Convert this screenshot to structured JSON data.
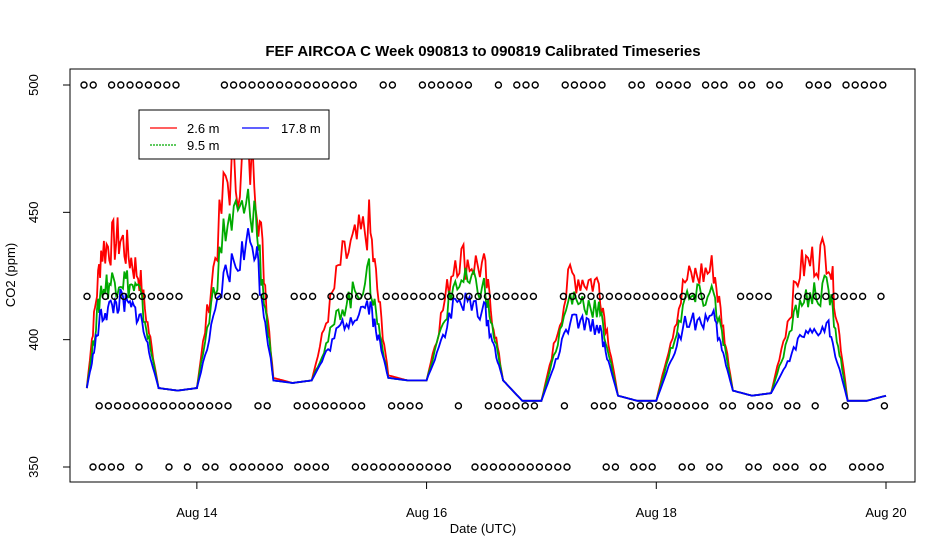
{
  "chart_data": {
    "type": "line",
    "title": "FEF AIRCOA C  Week 090813 to 090819  Calibrated Timeseries",
    "xlabel": "Date (UTC)",
    "ylabel": "CO2 (ppm)",
    "xlim": [
      "2009-08-13",
      "2009-08-20"
    ],
    "ylim": [
      345,
      505
    ],
    "xticks": [
      "Aug 14",
      "Aug 16",
      "Aug 18",
      "Aug 20"
    ],
    "yticks": [
      350,
      400,
      450,
      500
    ],
    "grid": false,
    "legend_position": "top-left",
    "series": [
      {
        "name": "2.6 m",
        "color": "#ff0000",
        "x": [
          "08-13 01h",
          "08-13 04h",
          "08-13 08h",
          "08-13 12h",
          "08-13 16h",
          "08-13 20h",
          "08-14 00h",
          "08-14 06h",
          "08-14 12h",
          "08-14 16h",
          "08-14 20h",
          "08-15 00h",
          "08-15 06h",
          "08-15 12h",
          "08-15 16h",
          "08-15 20h",
          "08-16 00h",
          "08-16 06h",
          "08-16 12h",
          "08-16 16h",
          "08-16 20h",
          "08-17 00h",
          "08-17 06h",
          "08-17 12h",
          "08-17 16h",
          "08-17 20h",
          "08-18 00h",
          "08-18 06h",
          "08-18 12h",
          "08-18 16h",
          "08-18 20h",
          "08-19 00h",
          "08-19 06h",
          "08-19 12h",
          "08-19 16h",
          "08-19 20h",
          "08-20 00h"
        ],
        "y": [
          381,
          435,
          440,
          425,
          381,
          380,
          381,
          462,
          470,
          385,
          383,
          384,
          430,
          445,
          386,
          384,
          384,
          433,
          428,
          384,
          376,
          376,
          425,
          422,
          378,
          376,
          376,
          423,
          428,
          380,
          378,
          379,
          428,
          435,
          376,
          376,
          378
        ]
      },
      {
        "name": "9.5 m",
        "color": "#00aa00",
        "x": [
          "08-13 01h",
          "08-13 04h",
          "08-13 08h",
          "08-13 12h",
          "08-13 16h",
          "08-13 20h",
          "08-14 00h",
          "08-14 06h",
          "08-14 12h",
          "08-14 16h",
          "08-14 20h",
          "08-15 00h",
          "08-15 06h",
          "08-15 12h",
          "08-15 16h",
          "08-15 20h",
          "08-16 00h",
          "08-16 06h",
          "08-16 12h",
          "08-16 16h",
          "08-16 20h",
          "08-17 00h",
          "08-17 06h",
          "08-17 12h",
          "08-17 16h",
          "08-17 20h",
          "08-18 00h",
          "08-18 06h",
          "08-18 12h",
          "08-18 16h",
          "08-18 20h",
          "08-19 00h",
          "08-19 06h",
          "08-19 12h",
          "08-19 16h",
          "08-19 20h",
          "08-20 00h"
        ],
        "y": [
          381,
          420,
          425,
          418,
          381,
          380,
          381,
          445,
          452,
          384,
          383,
          384,
          412,
          425,
          385,
          384,
          384,
          423,
          420,
          384,
          376,
          376,
          417,
          412,
          378,
          376,
          376,
          415,
          418,
          380,
          378,
          379,
          415,
          420,
          376,
          376,
          378
        ]
      },
      {
        "name": "17.8 m",
        "color": "#0000ff",
        "x": [
          "08-13 01h",
          "08-13 04h",
          "08-13 08h",
          "08-13 12h",
          "08-13 16h",
          "08-13 20h",
          "08-14 00h",
          "08-14 06h",
          "08-14 12h",
          "08-14 16h",
          "08-14 20h",
          "08-15 00h",
          "08-15 06h",
          "08-15 12h",
          "08-15 16h",
          "08-15 20h",
          "08-16 00h",
          "08-16 06h",
          "08-16 12h",
          "08-16 16h",
          "08-16 20h",
          "08-17 00h",
          "08-17 06h",
          "08-17 12h",
          "08-17 16h",
          "08-17 20h",
          "08-18 00h",
          "08-18 06h",
          "08-18 12h",
          "08-18 16h",
          "08-18 20h",
          "08-19 00h",
          "08-19 06h",
          "08-19 12h",
          "08-19 16h",
          "08-19 20h",
          "08-20 00h"
        ],
        "y": [
          381,
          410,
          415,
          410,
          381,
          380,
          381,
          425,
          440,
          384,
          383,
          384,
          405,
          415,
          385,
          384,
          384,
          415,
          412,
          384,
          376,
          376,
          407,
          405,
          378,
          376,
          376,
          407,
          408,
          380,
          378,
          379,
          400,
          405,
          376,
          376,
          378
        ]
      },
      {
        "name": "",
        "color": "#000000",
        "marker": "circle-open",
        "rows": [
          500,
          417,
          374,
          350
        ]
      }
    ]
  }
}
